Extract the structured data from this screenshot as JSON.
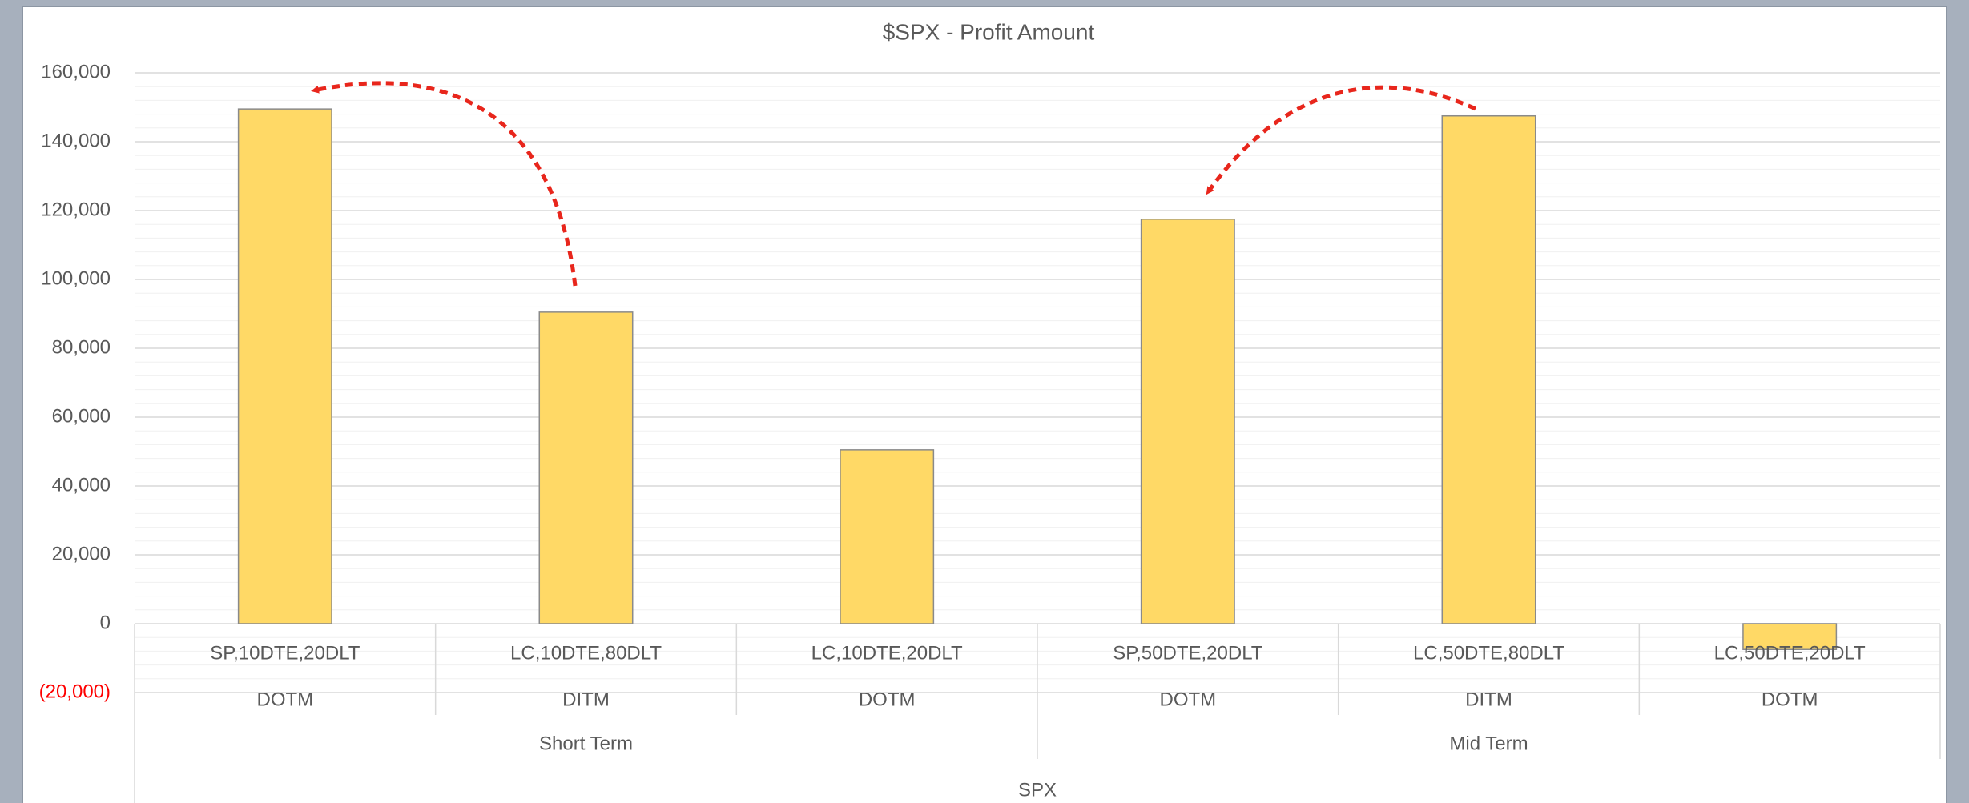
{
  "chart_data": {
    "type": "bar",
    "title": "$SPX - Profit Amount",
    "axis_title": "SPX",
    "groups": [
      {
        "name": "Short Term",
        "categories": [
          {
            "label": "SP,10DTE,20DLT",
            "sublabel": "DOTM"
          },
          {
            "label": "LC,10DTE,80DLT",
            "sublabel": "DITM"
          },
          {
            "label": "LC,10DTE,20DLT",
            "sublabel": "DOTM"
          }
        ]
      },
      {
        "name": "Mid Term",
        "categories": [
          {
            "label": "SP,50DTE,20DLT",
            "sublabel": "DOTM"
          },
          {
            "label": "LC,50DTE,80DLT",
            "sublabel": "DITM"
          },
          {
            "label": "LC,50DTE,20DLT",
            "sublabel": "DOTM"
          }
        ]
      }
    ],
    "values": [
      149500,
      90500,
      50500,
      117500,
      147500,
      -7500
    ],
    "color": "#ffd966",
    "negative_label_color": "#ff0000",
    "ylim": [
      -20000,
      160000
    ],
    "yticks": [
      {
        "value": -20000,
        "label": "(20,000)"
      },
      0,
      {
        "value": 20000,
        "label": "20,000"
      },
      {
        "value": 40000,
        "label": "40,000"
      },
      {
        "value": 60000,
        "label": "60,000"
      },
      {
        "value": 80000,
        "label": "80,000"
      },
      {
        "value": 100000,
        "label": "100,000"
      },
      {
        "value": 120000,
        "label": "120,000"
      },
      {
        "value": 140000,
        "label": "140,000"
      },
      {
        "value": 160000,
        "label": "160,000"
      }
    ],
    "grid": true,
    "minor_grid": true
  }
}
